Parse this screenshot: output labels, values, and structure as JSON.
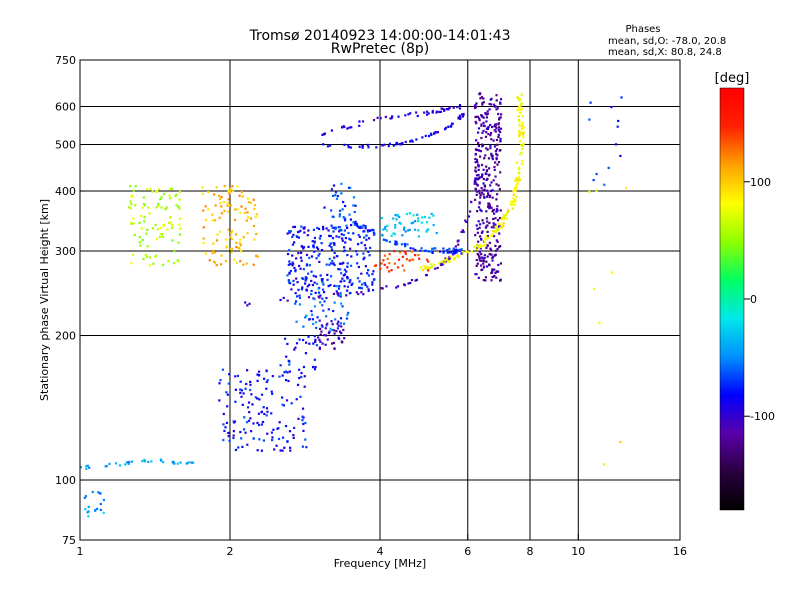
{
  "chart_data": {
    "type": "scatter",
    "title": "Tromsø 20140923 14:00:00-14:01:43",
    "subtitle": "RwPretec (8p)",
    "xlabel": "Frequency [MHz]",
    "ylabel": "Stationary phase Virtual Height [km]",
    "x_scale": "log",
    "y_scale": "log",
    "xlim": [
      1,
      16
    ],
    "ylim": [
      75,
      750
    ],
    "x_ticks": [
      1,
      2,
      4,
      6,
      8,
      10,
      16
    ],
    "y_ticks": [
      75,
      100,
      200,
      300,
      400,
      500,
      600,
      750
    ],
    "x_grid": [
      2,
      4,
      6,
      8,
      10
    ],
    "y_grid": [
      100,
      200,
      300,
      400,
      500,
      600
    ],
    "grid": true,
    "stats": {
      "heading": "Phases",
      "line1": "mean, sd,O: -78.0, 20.8",
      "line2": "mean, sd,X:  80.8, 24.8"
    },
    "colorbar": {
      "unit": "[deg]",
      "range": [
        -180,
        180
      ],
      "ticks": [
        {
          "label": "100",
          "value": 100
        },
        {
          "label": "0",
          "value": 0
        },
        {
          "label": "-100",
          "value": -100
        }
      ],
      "colors": [
        "#000000",
        "#2a0040",
        "#5a00aa",
        "#0000ff",
        "#0090ff",
        "#00e8e8",
        "#00ff60",
        "#90ff00",
        "#ffff00",
        "#ffa000",
        "#ff2000",
        "#ff0000"
      ]
    },
    "traces": [
      {
        "name": "",
        "phase": -105,
        "kind": "curve",
        "spread": 4,
        "count": 80,
        "points": [
          [
            2.1,
            232
          ],
          [
            2.6,
            238
          ],
          [
            3.2,
            242
          ],
          [
            3.8,
            247
          ],
          [
            4.5,
            256
          ],
          [
            5.0,
            268
          ],
          [
            5.5,
            290
          ],
          [
            5.9,
            330
          ],
          [
            6.2,
            400
          ],
          [
            6.4,
            480
          ],
          [
            6.6,
            560
          ]
        ]
      },
      {
        "name": "",
        "phase": -90,
        "kind": "curve",
        "spread": 3,
        "count": 60,
        "points": [
          [
            3.0,
            500
          ],
          [
            3.5,
            495
          ],
          [
            4.0,
            497
          ],
          [
            4.5,
            505
          ],
          [
            5.0,
            520
          ],
          [
            5.5,
            545
          ],
          [
            5.9,
            580
          ]
        ]
      },
      {
        "name": "",
        "phase": -95,
        "kind": "curve",
        "spread": 4,
        "count": 50,
        "points": [
          [
            3.0,
            520
          ],
          [
            3.8,
            560
          ],
          [
            4.5,
            575
          ],
          [
            5.2,
            585
          ],
          [
            5.8,
            600
          ]
        ]
      },
      {
        "name": "",
        "phase": -115,
        "kind": "cloud",
        "spread": 6,
        "count": 340,
        "x": [
          6.2,
          7.0
        ],
        "y": [
          260,
          640
        ]
      },
      {
        "name": "",
        "phase": 80,
        "kind": "curve",
        "spread": 5,
        "count": 170,
        "points": [
          [
            4.8,
            275
          ],
          [
            5.6,
            290
          ],
          [
            6.4,
            310
          ],
          [
            7.0,
            340
          ],
          [
            7.4,
            380
          ],
          [
            7.6,
            440
          ],
          [
            7.7,
            520
          ],
          [
            7.6,
            640
          ]
        ]
      },
      {
        "name": "",
        "phase": -70,
        "kind": "curve",
        "spread": 5,
        "count": 80,
        "points": [
          [
            3.0,
            380
          ],
          [
            3.6,
            340
          ],
          [
            4.2,
            315
          ],
          [
            4.8,
            302
          ],
          [
            5.4,
            300
          ],
          [
            6.0,
            300
          ]
        ]
      },
      {
        "name": "",
        "phase": -30,
        "kind": "cloud",
        "spread": 3,
        "count": 50,
        "x": [
          4.0,
          5.2
        ],
        "y": [
          320,
          360
        ]
      },
      {
        "name": "",
        "phase": 140,
        "kind": "cloud",
        "spread": 3,
        "count": 35,
        "x": [
          3.9,
          5.0
        ],
        "y": [
          272,
          300
        ]
      },
      {
        "name": "",
        "phase": -80,
        "kind": "cloud",
        "spread": 5,
        "count": 260,
        "x": [
          2.6,
          3.9
        ],
        "y": [
          245,
          340
        ]
      },
      {
        "name": "",
        "phase": -60,
        "kind": "cloud",
        "spread": 5,
        "count": 60,
        "x": [
          2.7,
          3.5
        ],
        "y": [
          205,
          270
        ]
      },
      {
        "name": "",
        "phase": -110,
        "kind": "cloud",
        "spread": 4,
        "count": 40,
        "x": [
          3.0,
          3.4
        ],
        "y": [
          185,
          215
        ]
      },
      {
        "name": "",
        "phase": -70,
        "kind": "cloud",
        "spread": 3,
        "count": 30,
        "x": [
          3.2,
          3.6
        ],
        "y": [
          330,
          420
        ]
      },
      {
        "name": "",
        "phase": 60,
        "kind": "cloud",
        "spread": 5,
        "count": 100,
        "x": [
          1.25,
          1.6
        ],
        "y": [
          280,
          410
        ]
      },
      {
        "name": "",
        "phase": 105,
        "kind": "cloud",
        "spread": 5,
        "count": 110,
        "x": [
          1.75,
          2.3
        ],
        "y": [
          280,
          410
        ]
      },
      {
        "name": "",
        "phase": -80,
        "kind": "cloud",
        "spread": 4,
        "count": 150,
        "x": [
          1.9,
          2.85
        ],
        "y": [
          115,
          170
        ]
      },
      {
        "name": "",
        "phase": -80,
        "kind": "cloud",
        "spread": 3,
        "count": 30,
        "x": [
          2.5,
          3.0
        ],
        "y": [
          165,
          200
        ]
      },
      {
        "name": "",
        "phase": -40,
        "kind": "curve",
        "spread": 3,
        "count": 35,
        "points": [
          [
            1.0,
            106
          ],
          [
            1.2,
            108
          ],
          [
            1.4,
            110
          ],
          [
            1.7,
            108
          ]
        ]
      },
      {
        "name": "",
        "phase": -40,
        "kind": "cloud",
        "spread": 3,
        "count": 18,
        "x": [
          1.0,
          1.12
        ],
        "y": [
          84,
          95
        ]
      },
      {
        "name": "",
        "phase": -70,
        "kind": "cloud",
        "spread": 3,
        "count": 12,
        "x": [
          10.5,
          12.5
        ],
        "y": [
          380,
          640
        ]
      },
      {
        "name": "",
        "phase": 90,
        "kind": "cloud",
        "spread": 3,
        "count": 8,
        "x": [
          10.5,
          12.8
        ],
        "y": [
          75,
          450
        ]
      }
    ]
  }
}
